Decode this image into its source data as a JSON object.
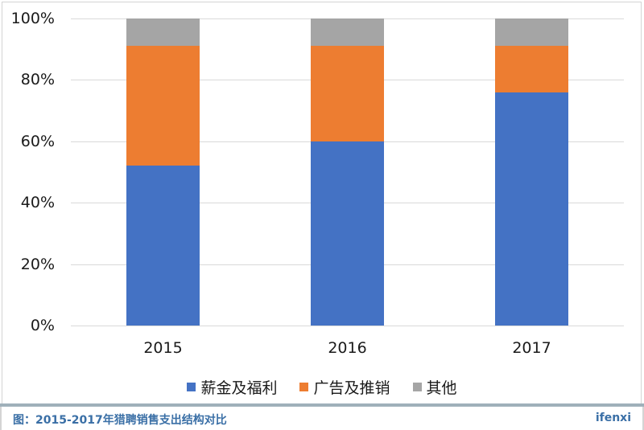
{
  "chart_data": {
    "type": "bar",
    "stacked": true,
    "percent_stacked": true,
    "title": "",
    "xlabel": "",
    "ylabel": "",
    "categories": [
      "2015",
      "2016",
      "2017"
    ],
    "series": [
      {
        "name": "薪金及福利",
        "color": "#4472C4",
        "values": [
          52,
          60,
          76
        ]
      },
      {
        "name": "广告及推销",
        "color": "#ED7D31",
        "values": [
          39,
          31,
          15
        ]
      },
      {
        "name": "其他",
        "color": "#A5A5A5",
        "values": [
          9,
          9,
          9
        ]
      }
    ],
    "ylim": [
      0,
      100
    ],
    "yticks": [
      "0%",
      "20%",
      "40%",
      "60%",
      "80%",
      "100%"
    ],
    "grid": true,
    "legend_position": "bottom"
  },
  "footer": {
    "caption": "图：2015-2017年猎聘销售支出结构对比",
    "brand": "ifenxi"
  }
}
